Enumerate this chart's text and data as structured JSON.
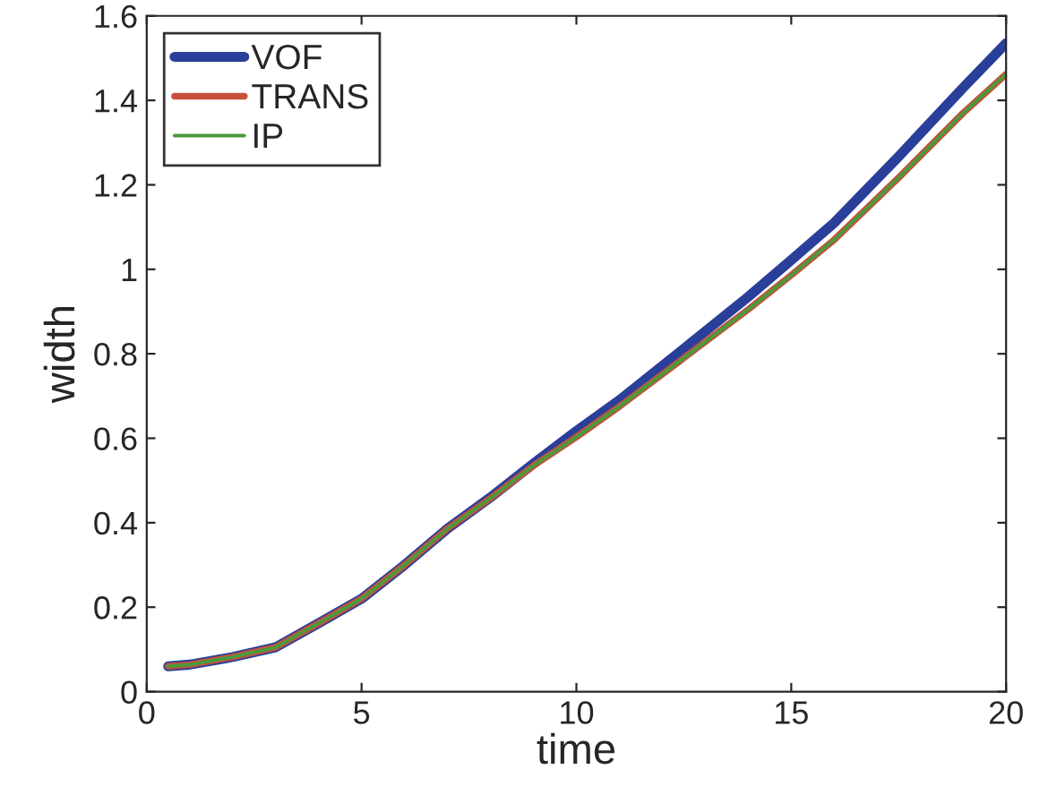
{
  "chart_data": {
    "type": "line",
    "xlabel": "time",
    "ylabel": "width",
    "x": [
      0.5,
      1,
      2,
      3,
      4,
      5,
      6,
      7,
      8,
      9,
      10,
      11,
      12.5,
      14,
      15,
      16,
      17.5,
      19,
      20
    ],
    "series": [
      {
        "name": "VOF",
        "color": "#2a3f9a",
        "values": [
          0.06,
          0.064,
          0.082,
          0.105,
          0.162,
          0.22,
          0.3,
          0.386,
          0.46,
          0.54,
          0.617,
          0.69,
          0.812,
          0.935,
          1.022,
          1.11,
          1.267,
          1.43,
          1.535
        ]
      },
      {
        "name": "TRANS",
        "color": "#c8503a",
        "values": [
          0.06,
          0.064,
          0.082,
          0.105,
          0.162,
          0.22,
          0.3,
          0.386,
          0.458,
          0.535,
          0.603,
          0.675,
          0.79,
          0.905,
          0.986,
          1.07,
          1.217,
          1.37,
          1.462
        ]
      },
      {
        "name": "IP",
        "color": "#4a9a3c",
        "values": [
          0.06,
          0.064,
          0.082,
          0.105,
          0.162,
          0.22,
          0.3,
          0.386,
          0.458,
          0.535,
          0.603,
          0.675,
          0.79,
          0.905,
          0.986,
          1.07,
          1.217,
          1.37,
          1.462
        ]
      }
    ],
    "xlim": [
      0,
      20
    ],
    "xticks": [
      0,
      5,
      10,
      15,
      20
    ],
    "ylim": [
      0,
      1.6
    ],
    "yticks": [
      0,
      0.2,
      0.4,
      0.6,
      0.8,
      1,
      1.2,
      1.4,
      1.6
    ],
    "legend": "top left",
    "grid": false
  }
}
